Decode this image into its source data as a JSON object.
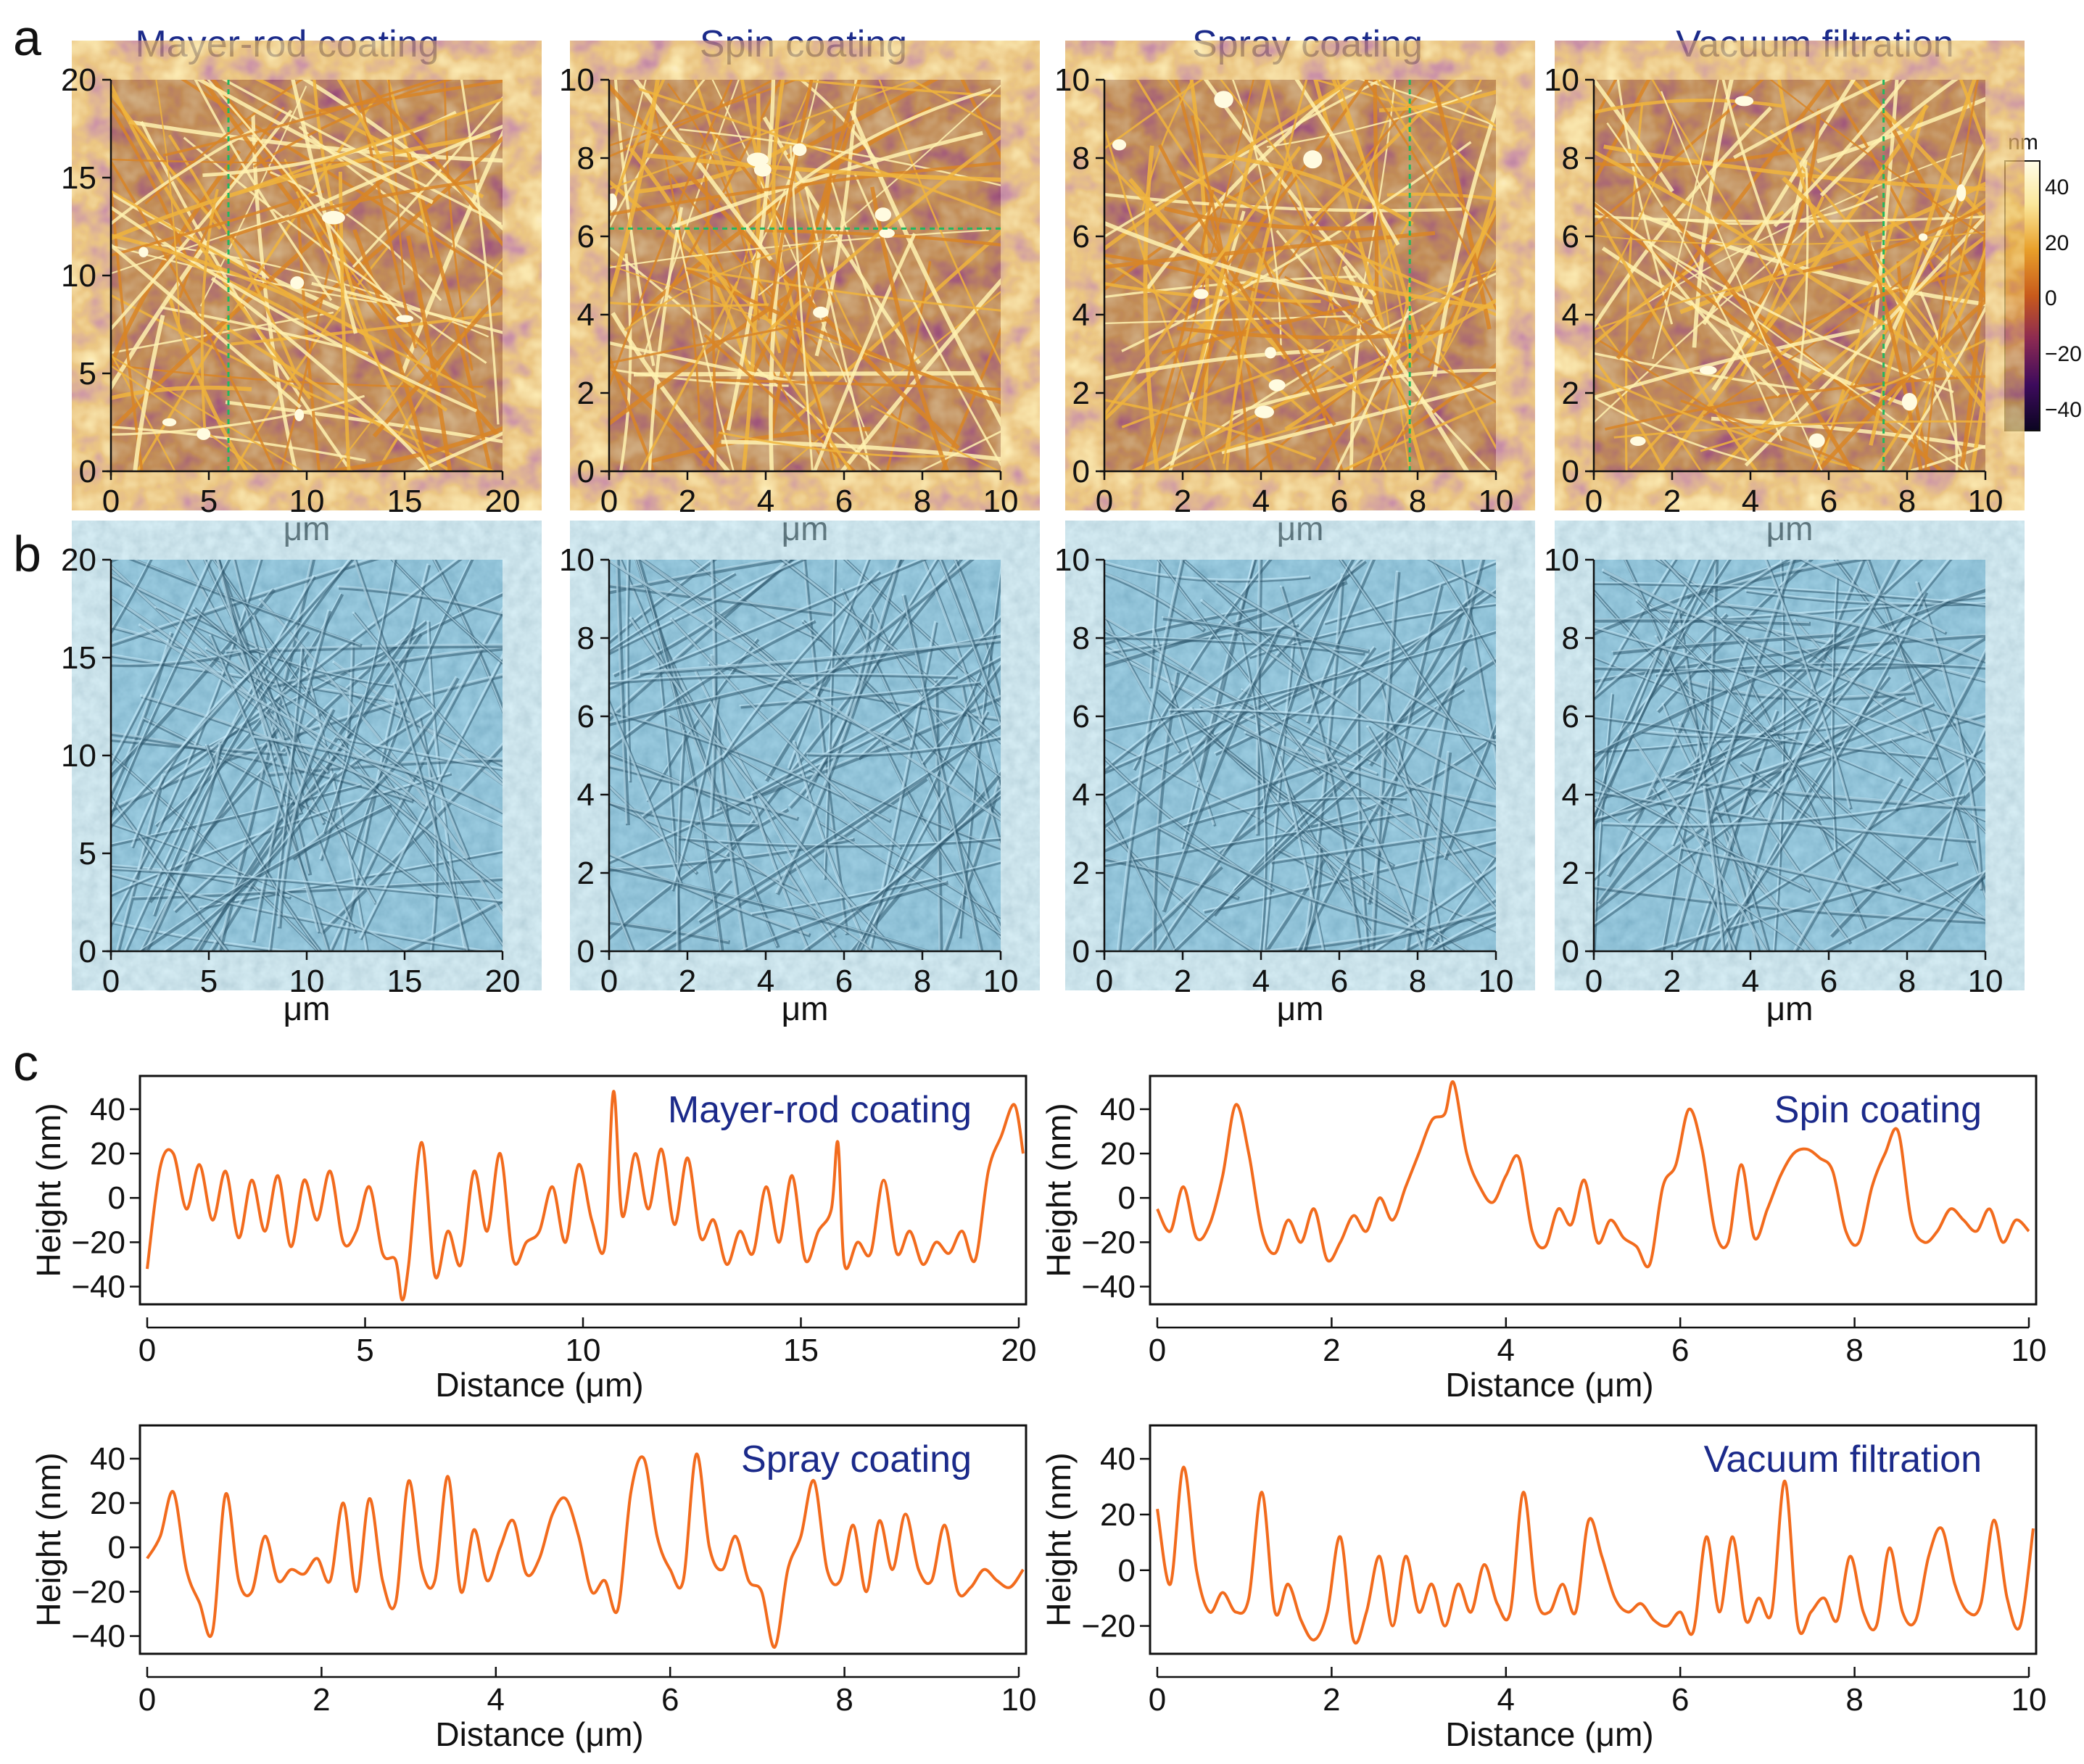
{
  "panel_letters": {
    "a": "a",
    "b": "b",
    "c": "c"
  },
  "methods": [
    "Mayer-rod coating",
    "Spin coating",
    "Spray coating",
    "Vacuum filtration"
  ],
  "afm_unit": "μm",
  "colorbar": {
    "unit": "nm",
    "ticks": [
      "40",
      "20",
      "0",
      "−20",
      "−40"
    ],
    "range": [
      -50,
      50
    ],
    "colors": [
      "#0b0521",
      "#3d0b5c",
      "#8c2a52",
      "#c85a1c",
      "#e89f2a",
      "#fbe89c",
      "#fffde8"
    ]
  },
  "afm_maps": [
    {
      "method": "Mayer-rod coating",
      "ticks": [
        "0",
        "5",
        "10",
        "15",
        "20"
      ],
      "range": [
        0,
        20
      ],
      "line_orientation": "vertical",
      "line_position": 6.0
    },
    {
      "method": "Spin coating",
      "ticks": [
        "0",
        "2",
        "4",
        "6",
        "8",
        "10"
      ],
      "range": [
        0,
        10
      ],
      "line_orientation": "horizontal",
      "line_position": 6.2
    },
    {
      "method": "Spray coating",
      "ticks": [
        "0",
        "2",
        "4",
        "6",
        "8",
        "10"
      ],
      "range": [
        0,
        10
      ],
      "line_orientation": "vertical",
      "line_position": 7.8
    },
    {
      "method": "Vacuum filtration",
      "ticks": [
        "0",
        "2",
        "4",
        "6",
        "8",
        "10"
      ],
      "range": [
        0,
        10
      ],
      "line_orientation": "vertical",
      "line_position": 7.4
    }
  ],
  "chart_data": [
    {
      "type": "line",
      "title": "Mayer-rod coating",
      "xlabel": "Distance (μm)",
      "ylabel": "Height (nm)",
      "xlim": [
        0,
        20
      ],
      "ylim": [
        -48,
        55
      ],
      "xticks": [
        "0",
        "5",
        "10",
        "15",
        "20"
      ],
      "yticks": [
        "40",
        "20",
        "0",
        "−20",
        "−40"
      ],
      "x": [
        0,
        0.3,
        0.6,
        0.9,
        1.2,
        1.5,
        1.8,
        2.1,
        2.4,
        2.7,
        3.0,
        3.3,
        3.6,
        3.9,
        4.2,
        4.5,
        4.8,
        5.1,
        5.4,
        5.7,
        5.85,
        6.0,
        6.3,
        6.6,
        6.9,
        7.2,
        7.5,
        7.8,
        8.1,
        8.4,
        8.7,
        9.0,
        9.3,
        9.6,
        9.9,
        10.2,
        10.5,
        10.7,
        10.9,
        11.2,
        11.5,
        11.8,
        12.1,
        12.4,
        12.7,
        13.0,
        13.3,
        13.6,
        13.9,
        14.2,
        14.5,
        14.8,
        15.1,
        15.4,
        15.7,
        15.85,
        16.0,
        16.3,
        16.6,
        16.9,
        17.2,
        17.5,
        17.8,
        18.1,
        18.4,
        18.7,
        19.0,
        19.3,
        19.6,
        19.9,
        20.1
      ],
      "y": [
        -32,
        14,
        20,
        -5,
        15,
        -10,
        12,
        -18,
        8,
        -15,
        10,
        -22,
        8,
        -10,
        12,
        -20,
        -15,
        5,
        -25,
        -28,
        -46,
        -30,
        25,
        -35,
        -15,
        -30,
        12,
        -15,
        20,
        -28,
        -20,
        -15,
        5,
        -20,
        15,
        -10,
        -22,
        48,
        -8,
        20,
        -5,
        22,
        -12,
        18,
        -18,
        -10,
        -30,
        -15,
        -25,
        5,
        -20,
        10,
        -28,
        -15,
        -5,
        25,
        -30,
        -20,
        -25,
        8,
        -25,
        -15,
        -30,
        -20,
        -25,
        -15,
        -28,
        12,
        28,
        42,
        20
      ]
    },
    {
      "type": "line",
      "title": "Spin coating",
      "xlabel": "Distance (μm)",
      "ylabel": "Height (nm)",
      "xlim": [
        0,
        10
      ],
      "ylim": [
        -48,
        55
      ],
      "xticks": [
        "0",
        "2",
        "4",
        "6",
        "8",
        "10"
      ],
      "yticks": [
        "40",
        "20",
        "0",
        "−20",
        "−40"
      ],
      "x": [
        0,
        0.15,
        0.3,
        0.45,
        0.6,
        0.75,
        0.9,
        1.05,
        1.2,
        1.35,
        1.5,
        1.65,
        1.8,
        1.95,
        2.1,
        2.25,
        2.4,
        2.55,
        2.7,
        2.85,
        3.0,
        3.15,
        3.3,
        3.4,
        3.55,
        3.7,
        3.85,
        4.0,
        4.15,
        4.3,
        4.45,
        4.6,
        4.75,
        4.9,
        5.05,
        5.2,
        5.35,
        5.5,
        5.65,
        5.8,
        5.95,
        6.1,
        6.25,
        6.4,
        6.55,
        6.7,
        6.85,
        7.0,
        7.15,
        7.3,
        7.45,
        7.6,
        7.75,
        7.9,
        8.05,
        8.2,
        8.35,
        8.5,
        8.65,
        8.8,
        8.95,
        9.1,
        9.25,
        9.4,
        9.55,
        9.7,
        9.85,
        10.0
      ],
      "y": [
        -5,
        -15,
        5,
        -18,
        -12,
        10,
        42,
        20,
        -15,
        -25,
        -10,
        -20,
        -5,
        -28,
        -20,
        -8,
        -15,
        0,
        -10,
        5,
        20,
        35,
        38,
        52,
        20,
        5,
        -2,
        10,
        18,
        -15,
        -22,
        -5,
        -12,
        8,
        -20,
        -10,
        -18,
        -22,
        -30,
        5,
        15,
        40,
        22,
        -15,
        -20,
        15,
        -18,
        -5,
        10,
        20,
        22,
        18,
        12,
        -15,
        -20,
        5,
        20,
        30,
        -10,
        -20,
        -15,
        -5,
        -10,
        -15,
        -5,
        -20,
        -10,
        -15
      ]
    },
    {
      "type": "line",
      "title": "Spray coating",
      "xlabel": "Distance (μm)",
      "ylabel": "Height (nm)",
      "xlim": [
        0,
        10
      ],
      "ylim": [
        -48,
        55
      ],
      "xticks": [
        "0",
        "2",
        "4",
        "6",
        "8",
        "10"
      ],
      "yticks": [
        "40",
        "20",
        "0",
        "−20",
        "−40"
      ],
      "x": [
        0,
        0.15,
        0.3,
        0.45,
        0.6,
        0.75,
        0.9,
        1.05,
        1.2,
        1.35,
        1.5,
        1.65,
        1.8,
        1.95,
        2.1,
        2.25,
        2.4,
        2.55,
        2.7,
        2.85,
        3.0,
        3.15,
        3.3,
        3.45,
        3.6,
        3.75,
        3.9,
        4.05,
        4.2,
        4.35,
        4.5,
        4.65,
        4.8,
        4.95,
        5.1,
        5.25,
        5.4,
        5.55,
        5.7,
        5.85,
        6.0,
        6.15,
        6.3,
        6.45,
        6.6,
        6.75,
        6.9,
        7.05,
        7.2,
        7.35,
        7.5,
        7.65,
        7.8,
        7.95,
        8.1,
        8.25,
        8.4,
        8.55,
        8.7,
        8.85,
        9.0,
        9.15,
        9.3,
        9.45,
        9.6,
        9.75,
        9.9,
        10.05
      ],
      "y": [
        -5,
        5,
        25,
        -10,
        -25,
        -38,
        24,
        -15,
        -20,
        5,
        -15,
        -10,
        -12,
        -5,
        -15,
        20,
        -20,
        22,
        -15,
        -25,
        30,
        -10,
        -15,
        32,
        -20,
        8,
        -15,
        0,
        12,
        -12,
        -5,
        15,
        22,
        5,
        -20,
        -15,
        -28,
        25,
        40,
        5,
        -10,
        -15,
        42,
        0,
        -10,
        5,
        -15,
        -20,
        -45,
        -10,
        5,
        30,
        -10,
        -15,
        10,
        -20,
        12,
        -10,
        15,
        -10,
        -15,
        10,
        -20,
        -18,
        -10,
        -15,
        -18,
        -10
      ]
    },
    {
      "type": "line",
      "title": "Vacuum filtration",
      "xlabel": "Distance (μm)",
      "ylabel": "Height (nm)",
      "xlim": [
        0,
        10
      ],
      "ylim": [
        -30,
        52
      ],
      "xticks": [
        "0",
        "2",
        "4",
        "6",
        "8",
        "10"
      ],
      "yticks": [
        "40",
        "20",
        "0",
        "−20"
      ],
      "x": [
        0,
        0.15,
        0.3,
        0.45,
        0.6,
        0.75,
        0.9,
        1.05,
        1.2,
        1.35,
        1.5,
        1.65,
        1.8,
        1.95,
        2.1,
        2.25,
        2.4,
        2.55,
        2.7,
        2.85,
        3.0,
        3.15,
        3.3,
        3.45,
        3.6,
        3.75,
        3.9,
        4.05,
        4.2,
        4.35,
        4.5,
        4.65,
        4.8,
        4.95,
        5.1,
        5.25,
        5.4,
        5.55,
        5.7,
        5.85,
        6.0,
        6.15,
        6.3,
        6.45,
        6.6,
        6.75,
        6.9,
        7.05,
        7.2,
        7.35,
        7.5,
        7.65,
        7.8,
        7.95,
        8.1,
        8.25,
        8.4,
        8.55,
        8.7,
        8.85,
        9.0,
        9.15,
        9.3,
        9.45,
        9.6,
        9.75,
        9.9,
        10.05
      ],
      "y": [
        22,
        -5,
        37,
        0,
        -15,
        -8,
        -15,
        -10,
        28,
        -15,
        -5,
        -18,
        -25,
        -15,
        12,
        -25,
        -15,
        5,
        -20,
        5,
        -15,
        -5,
        -20,
        -5,
        -15,
        2,
        -12,
        -15,
        28,
        -10,
        -15,
        -5,
        -15,
        18,
        5,
        -10,
        -15,
        -12,
        -18,
        -20,
        -15,
        -22,
        12,
        -15,
        12,
        -18,
        -10,
        -15,
        32,
        -20,
        -15,
        -10,
        -18,
        5,
        -15,
        -20,
        8,
        -15,
        -18,
        5,
        15,
        -5,
        -15,
        -12,
        18,
        -10,
        -20,
        15
      ]
    }
  ]
}
